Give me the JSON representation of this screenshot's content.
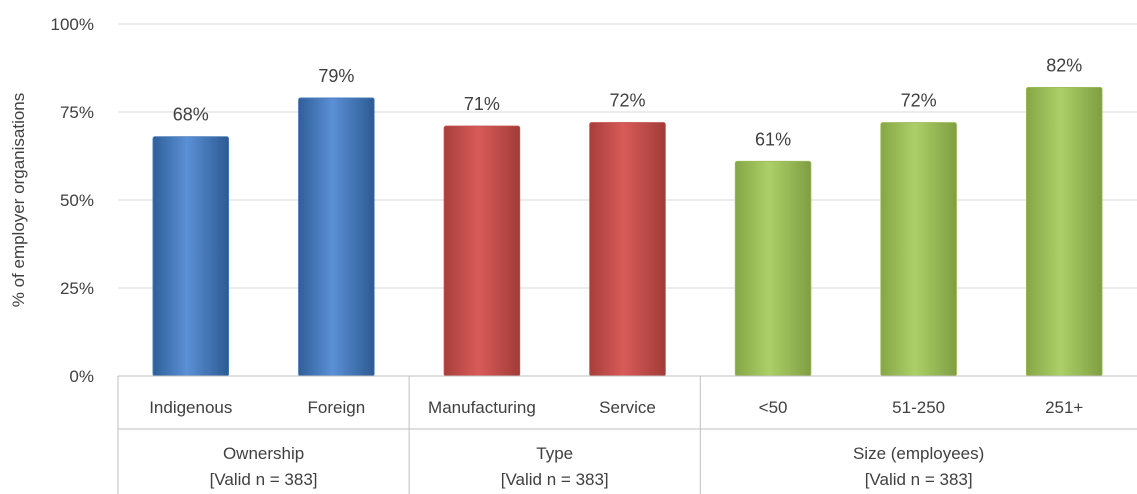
{
  "chart_data": {
    "type": "bar",
    "ylabel": "% of employer organisations",
    "ylim": [
      0,
      100
    ],
    "yticks": [
      "0%",
      "25%",
      "50%",
      "75%",
      "100%"
    ],
    "grid": true,
    "groups": [
      {
        "name": "Ownership",
        "note": "[Valid n = 383]",
        "color": "#4a7ebb",
        "categories": [
          "Indigenous",
          "Foreign"
        ],
        "values": [
          68,
          79
        ],
        "labels": [
          "68%",
          "79%"
        ]
      },
      {
        "name": "Type",
        "note": "[Valid n = 383]",
        "color": "#c0504d",
        "categories": [
          "Manufacturing",
          "Service"
        ],
        "values": [
          71,
          72
        ],
        "labels": [
          "71%",
          "72%"
        ]
      },
      {
        "name": "Size (employees)",
        "note": "[Valid n = 383]",
        "color": "#9bbb59",
        "categories": [
          "<50",
          "51-250",
          "251+"
        ],
        "values": [
          61,
          72,
          82
        ],
        "labels": [
          "61%",
          "72%",
          "82%"
        ]
      }
    ]
  }
}
